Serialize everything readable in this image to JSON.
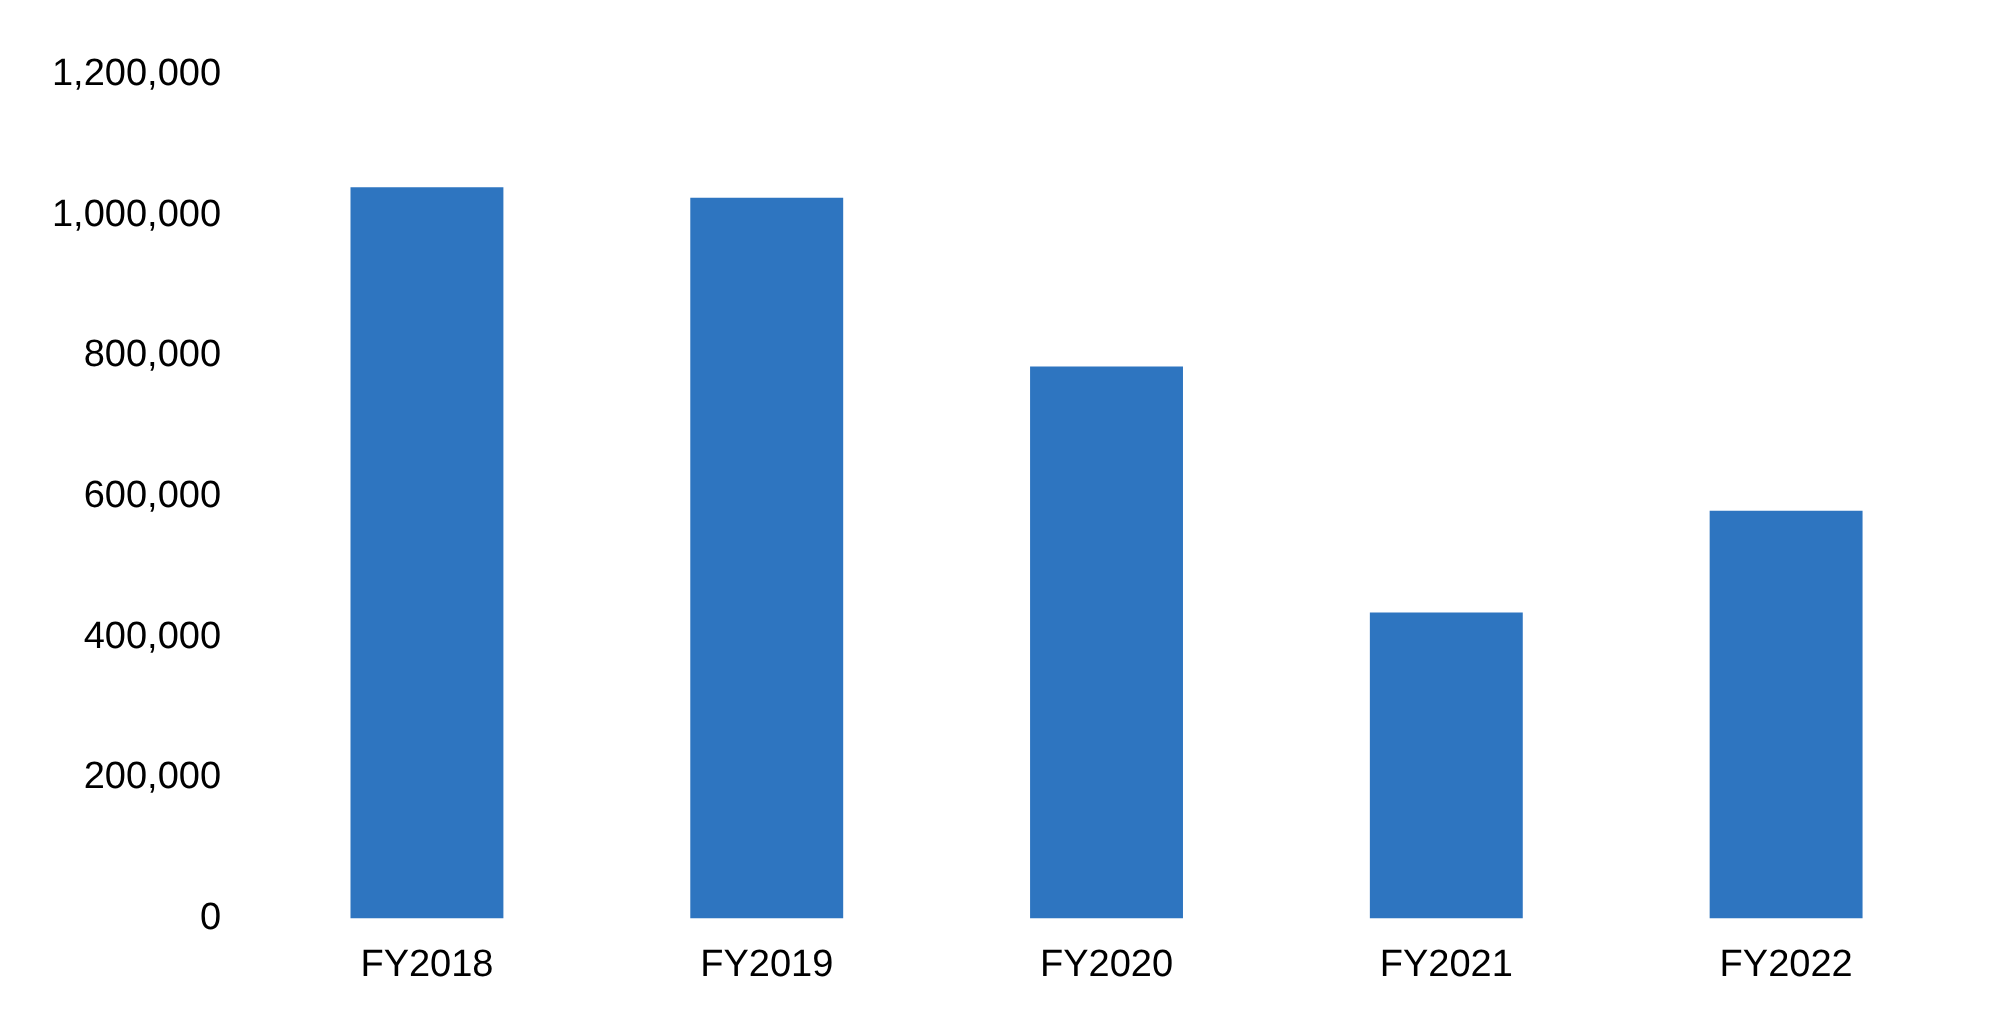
{
  "chart_data": {
    "type": "bar",
    "categories": [
      "FY2018",
      "FY2019",
      "FY2020",
      "FY2021",
      "FY2022"
    ],
    "values": [
      1040000,
      1025000,
      785000,
      435000,
      580000
    ],
    "color": "#2e75c0",
    "ylim": [
      0,
      1200000
    ],
    "yticks": [
      {
        "value": 0,
        "label": "0"
      },
      {
        "value": 200000,
        "label": "200,000"
      },
      {
        "value": 400000,
        "label": "400,000"
      },
      {
        "value": 600000,
        "label": "600,000"
      },
      {
        "value": 800000,
        "label": "800,000"
      },
      {
        "value": 1000000,
        "label": "1,000,000"
      },
      {
        "value": 1200000,
        "label": "1,200,000"
      }
    ],
    "grid": false,
    "legend": false
  }
}
